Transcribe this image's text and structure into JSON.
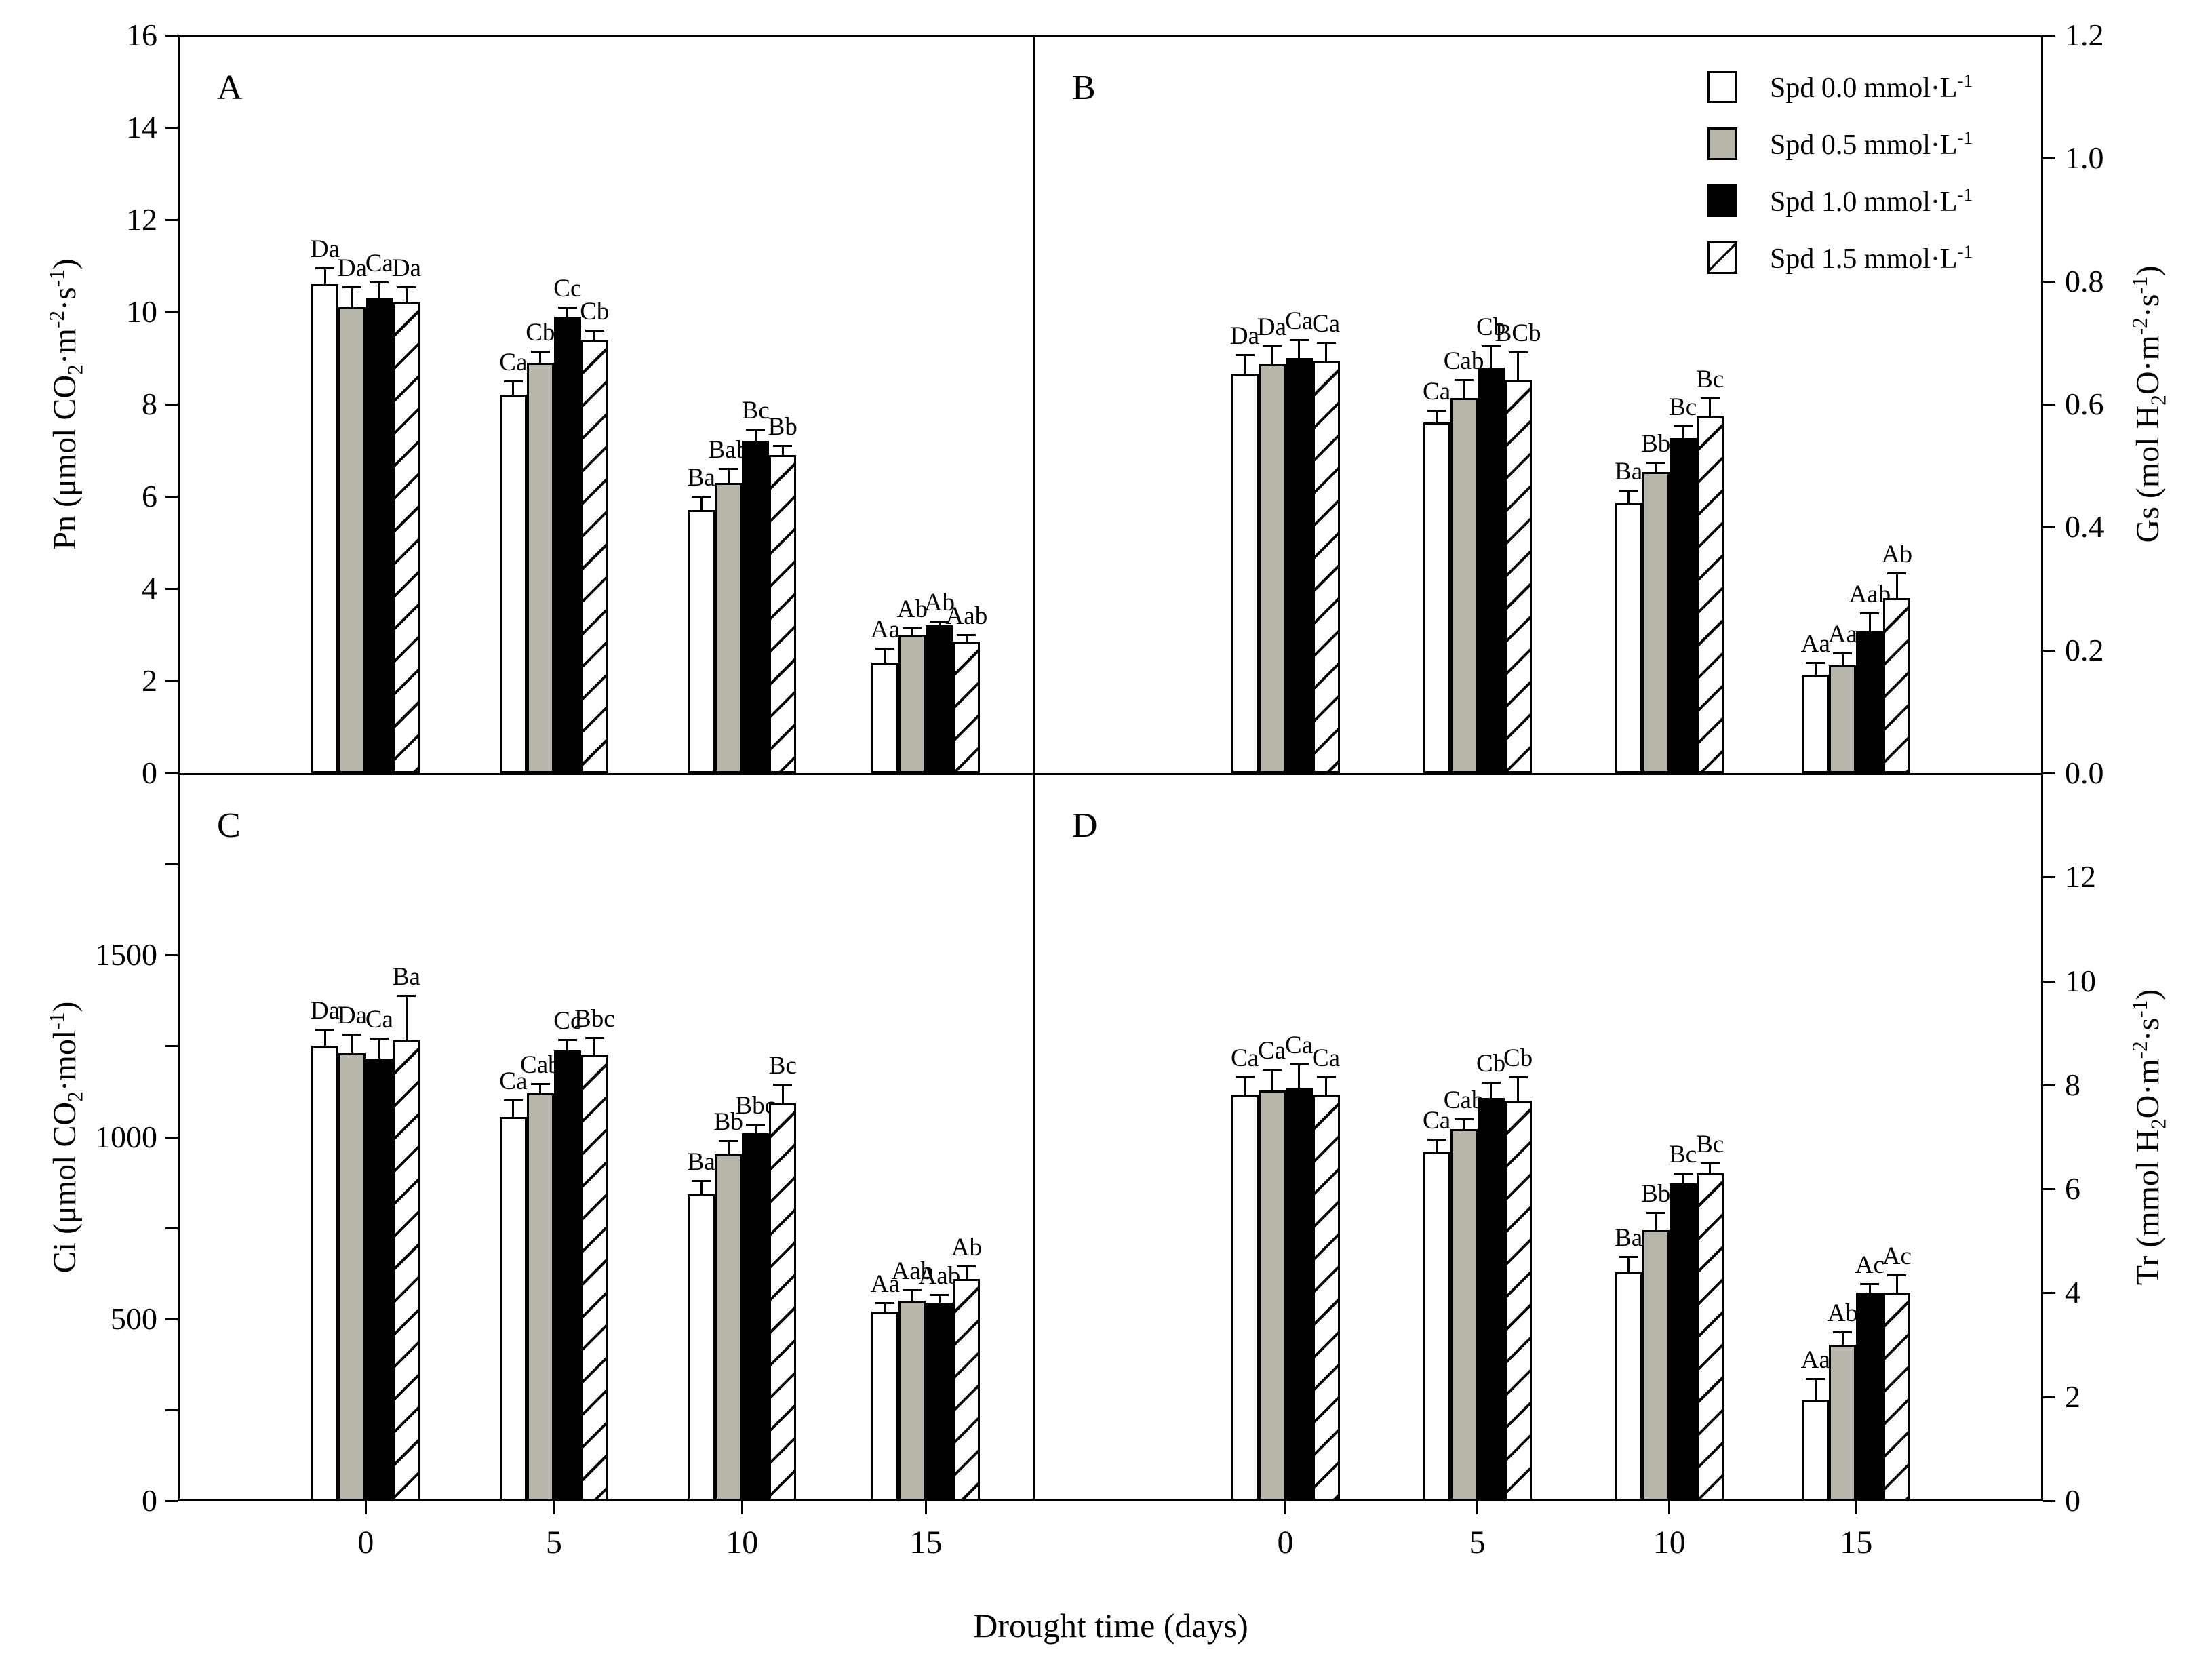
{
  "xlabel": "Drought time (days)",
  "colors": {
    "white": "#ffffff",
    "gray": "#b8b6ab",
    "black": "#000000",
    "accent_line": "#000000"
  },
  "legend": {
    "items": [
      {
        "label_rich": "Spd 0.0 mmol·L^-1^",
        "fill": "white"
      },
      {
        "label_rich": "Spd 0.5 mmol·L^-1^",
        "fill": "gray"
      },
      {
        "label_rich": "Spd 1.0 mmol·L^-1^",
        "fill": "black"
      },
      {
        "label_rich": "Spd 1.5 mmol·L^-1^",
        "fill": "hatch"
      }
    ]
  },
  "chart_data": [
    {
      "id": "A",
      "type": "bar",
      "title_letter": "A",
      "ylabel_rich": "Pn (μmol CO_2_·m^-2^·s^-1^)",
      "axis_side": "left",
      "ylim": [
        0,
        16
      ],
      "ytick_values": [
        0,
        2,
        4,
        6,
        8,
        10,
        12,
        14,
        16
      ],
      "ytick_labels": [
        "0",
        "2",
        "4",
        "6",
        "8",
        "10",
        "12",
        "14",
        "16"
      ],
      "minor_tick_values": [],
      "categories": [
        "0",
        "5",
        "10",
        "15"
      ],
      "grid": false,
      "series": [
        {
          "name": "Spd 0.0 mmol·L-1",
          "fill": "white",
          "values": [
            10.6,
            8.2,
            5.7,
            2.4
          ],
          "errors": [
            0.35,
            0.3,
            0.3,
            0.3
          ],
          "sig": [
            "Da",
            "Ca",
            "Ba",
            "Aa"
          ]
        },
        {
          "name": "Spd 0.5 mmol·L-1",
          "fill": "gray",
          "values": [
            10.1,
            8.9,
            6.3,
            3.0
          ],
          "errors": [
            0.45,
            0.25,
            0.3,
            0.15
          ],
          "sig": [
            "Da",
            "Cb",
            "Bab",
            "Ab"
          ]
        },
        {
          "name": "Spd 1.0 mmol·L-1",
          "fill": "black",
          "values": [
            10.3,
            9.9,
            7.2,
            3.2
          ],
          "errors": [
            0.35,
            0.2,
            0.25,
            0.1
          ],
          "sig": [
            "Ca",
            "Cc",
            "Bc",
            "Ab"
          ]
        },
        {
          "name": "Spd 1.5 mmol·L-1",
          "fill": "hatch",
          "values": [
            10.2,
            9.4,
            6.9,
            2.85
          ],
          "errors": [
            0.35,
            0.2,
            0.2,
            0.15
          ],
          "sig": [
            "Da",
            "Cb",
            "Bb",
            "Aab"
          ]
        }
      ]
    },
    {
      "id": "B",
      "type": "bar",
      "title_letter": "B",
      "ylabel_rich": "Gs (mol H_2_O·m^-2^·s^-1^)",
      "axis_side": "right",
      "ylim": [
        0,
        1.2
      ],
      "ytick_values": [
        0,
        0.2,
        0.4,
        0.6,
        0.8,
        1.0,
        1.2
      ],
      "ytick_labels": [
        "0.0",
        "0.2",
        "0.4",
        "0.6",
        "0.8",
        "1.0",
        "1.2"
      ],
      "minor_tick_values": [],
      "categories": [
        "0",
        "5",
        "10",
        "15"
      ],
      "grid": false,
      "series": [
        {
          "name": "Spd 0.0 mmol·L-1",
          "fill": "white",
          "values": [
            0.65,
            0.57,
            0.44,
            0.16
          ],
          "errors": [
            0.03,
            0.02,
            0.02,
            0.02
          ],
          "sig": [
            "Da",
            "Ca",
            "Ba",
            "Aa"
          ]
        },
        {
          "name": "Spd 0.5 mmol·L-1",
          "fill": "gray",
          "values": [
            0.665,
            0.61,
            0.49,
            0.175
          ],
          "errors": [
            0.03,
            0.03,
            0.015,
            0.02
          ],
          "sig": [
            "Da",
            "Cab",
            "Bb",
            "Aa"
          ]
        },
        {
          "name": "Spd 1.0 mmol·L-1",
          "fill": "black",
          "values": [
            0.675,
            0.66,
            0.545,
            0.23
          ],
          "errors": [
            0.03,
            0.035,
            0.02,
            0.03
          ],
          "sig": [
            "Ca",
            "Cb",
            "Bc",
            "Aab"
          ]
        },
        {
          "name": "Spd 1.5 mmol·L-1",
          "fill": "hatch",
          "values": [
            0.67,
            0.64,
            0.58,
            0.285
          ],
          "errors": [
            0.03,
            0.045,
            0.03,
            0.04
          ],
          "sig": [
            "Ca",
            "BCb",
            "Bc",
            "Ab"
          ]
        }
      ]
    },
    {
      "id": "C",
      "type": "bar",
      "title_letter": "C",
      "ylabel_rich": "Ci (μmol CO_2_·mol^-1^)",
      "axis_side": "left",
      "ylim": [
        0,
        2000
      ],
      "ytick_values": [
        0,
        500,
        1000,
        1500
      ],
      "ytick_labels": [
        "0",
        "500",
        "1000",
        "1500"
      ],
      "minor_tick_values": [
        250,
        750,
        1250,
        1750
      ],
      "categories": [
        "0",
        "5",
        "10",
        "15"
      ],
      "grid": false,
      "series": [
        {
          "name": "Spd 0.0 mmol·L-1",
          "fill": "white",
          "values": [
            1250,
            1055,
            843,
            520
          ],
          "errors": [
            45,
            46,
            37,
            25
          ],
          "sig": [
            "Da",
            "Ca",
            "Ba",
            "Aa"
          ]
        },
        {
          "name": "Spd 0.5 mmol·L-1",
          "fill": "gray",
          "values": [
            1230,
            1120,
            952,
            550
          ],
          "errors": [
            52,
            27,
            37,
            30
          ],
          "sig": [
            "Da",
            "Cab",
            "Bb",
            "Aab"
          ]
        },
        {
          "name": "Spd 1.0 mmol·L-1",
          "fill": "black",
          "values": [
            1215,
            1237,
            1010,
            545
          ],
          "errors": [
            57,
            30,
            24,
            22
          ],
          "sig": [
            "Ca",
            "Cc",
            "Bbc",
            "Aab"
          ]
        },
        {
          "name": "Spd 1.5 mmol·L-1",
          "fill": "hatch",
          "values": [
            1265,
            1225,
            1093,
            610
          ],
          "errors": [
            123,
            48,
            52,
            35
          ],
          "sig": [
            "Ba",
            "Bbc",
            "Bc",
            "Ab"
          ]
        }
      ]
    },
    {
      "id": "D",
      "type": "bar",
      "title_letter": "D",
      "ylabel_rich": "Tr (mmol H_2_O·m^-2^·s^-1^)",
      "axis_side": "right",
      "ylim": [
        0,
        14
      ],
      "ytick_values": [
        0,
        2,
        4,
        6,
        8,
        10,
        12
      ],
      "ytick_labels": [
        "0",
        "2",
        "4",
        "6",
        "8",
        "10",
        "12"
      ],
      "minor_tick_values": [],
      "categories": [
        "0",
        "5",
        "10",
        "15"
      ],
      "grid": false,
      "series": [
        {
          "name": "Spd 0.0 mmol·L-1",
          "fill": "white",
          "values": [
            7.8,
            6.7,
            4.4,
            1.95
          ],
          "errors": [
            0.35,
            0.25,
            0.3,
            0.4
          ],
          "sig": [
            "Ca",
            "Ca",
            "Ba",
            "Aa"
          ]
        },
        {
          "name": "Spd 0.5 mmol·L-1",
          "fill": "gray",
          "values": [
            7.9,
            7.15,
            5.2,
            3.0
          ],
          "errors": [
            0.4,
            0.2,
            0.35,
            0.25
          ],
          "sig": [
            "Ca",
            "Cab",
            "Bb",
            "Ab"
          ]
        },
        {
          "name": "Spd 1.0 mmol·L-1",
          "fill": "black",
          "values": [
            7.95,
            7.75,
            6.1,
            4.0
          ],
          "errors": [
            0.45,
            0.3,
            0.2,
            0.17
          ],
          "sig": [
            "Ca",
            "Cb",
            "Bc",
            "Ac"
          ]
        },
        {
          "name": "Spd 1.5 mmol·L-1",
          "fill": "hatch",
          "values": [
            7.8,
            7.7,
            6.3,
            4.0
          ],
          "errors": [
            0.35,
            0.45,
            0.2,
            0.35
          ],
          "sig": [
            "Ca",
            "Cb",
            "Bc",
            "Ac"
          ]
        }
      ]
    }
  ]
}
